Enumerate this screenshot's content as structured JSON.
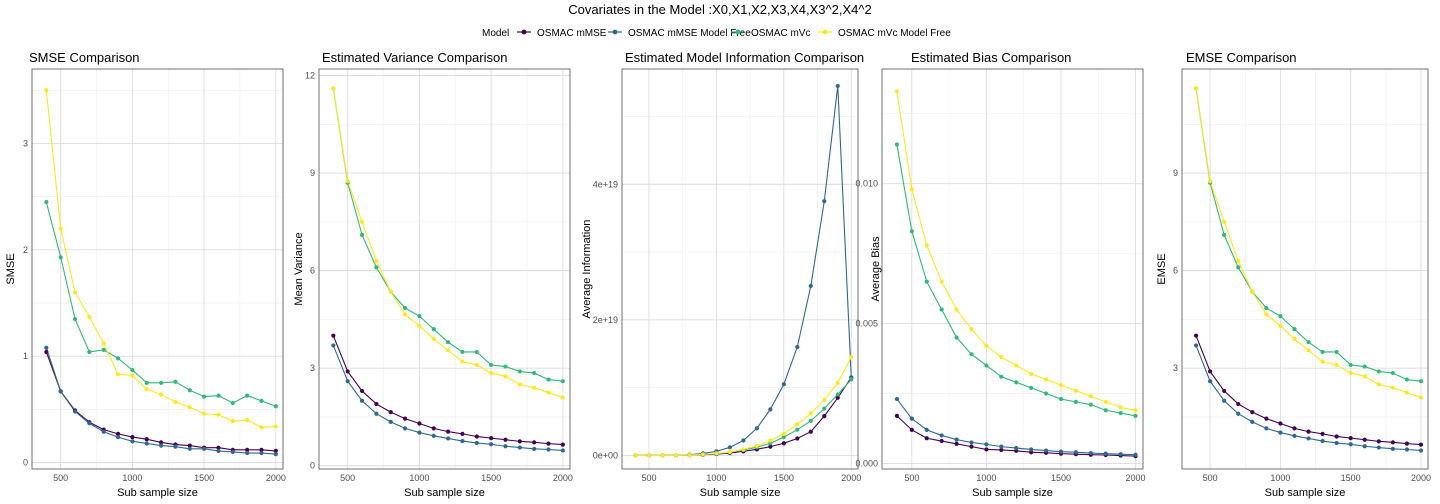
{
  "title": "Covariates in the Model :X0,X1,X2,X3,X4,X3^2,X4^2",
  "legend": {
    "title": "Model",
    "entries": [
      {
        "name": "OSMAC mMSE",
        "color": "#440154"
      },
      {
        "name": "OSMAC mMSE Model Free",
        "color": "#31688e"
      },
      {
        "name": "OSMAC mVc",
        "color": "#35b779"
      },
      {
        "name": "OSMAC mVc Model Free",
        "color": "#fde725"
      }
    ]
  },
  "chart_data": [
    {
      "type": "line",
      "title": "SMSE Comparison",
      "xlabel": "Sub sample size",
      "ylabel": "SMSE",
      "xlim": [
        300,
        2050
      ],
      "ylim": [
        -0.06,
        3.7
      ],
      "xticks": [
        500,
        1000,
        1500,
        2000
      ],
      "xtick_labels": [
        "500",
        "1000",
        "1500",
        "2000"
      ],
      "yticks": [
        0,
        1,
        2,
        3
      ],
      "ytick_labels": [
        "0",
        "1",
        "2",
        "3"
      ],
      "x": [
        400,
        500,
        600,
        700,
        800,
        900,
        1000,
        1100,
        1200,
        1300,
        1400,
        1500,
        1600,
        1700,
        1800,
        1900,
        2000
      ],
      "series": [
        {
          "name": "OSMAC mMSE",
          "values": [
            1.04,
            0.67,
            0.49,
            0.38,
            0.31,
            0.27,
            0.24,
            0.22,
            0.19,
            0.17,
            0.16,
            0.14,
            0.14,
            0.12,
            0.12,
            0.12,
            0.11
          ]
        },
        {
          "name": "OSMAC mMSE Model Free",
          "values": [
            1.08,
            0.67,
            0.48,
            0.37,
            0.29,
            0.24,
            0.2,
            0.18,
            0.16,
            0.15,
            0.13,
            0.13,
            0.11,
            0.1,
            0.09,
            0.09,
            0.08
          ]
        },
        {
          "name": "OSMAC mVc",
          "values": [
            2.45,
            1.93,
            1.35,
            1.04,
            1.06,
            0.98,
            0.87,
            0.75,
            0.75,
            0.76,
            0.68,
            0.62,
            0.63,
            0.56,
            0.63,
            0.58,
            0.53
          ]
        },
        {
          "name": "OSMAC mVc Model Free",
          "values": [
            3.5,
            2.2,
            1.6,
            1.37,
            1.12,
            0.83,
            0.82,
            0.69,
            0.64,
            0.57,
            0.52,
            0.46,
            0.45,
            0.39,
            0.4,
            0.33,
            0.34
          ]
        }
      ]
    },
    {
      "type": "line",
      "title": "Estimated Variance Comparison",
      "xlabel": "Sub sample size",
      "ylabel": "Mean Variance",
      "xlim": [
        300,
        2050
      ],
      "ylim": [
        -0.1,
        12.2
      ],
      "xticks": [
        500,
        1000,
        1500,
        2000
      ],
      "xtick_labels": [
        "500",
        "1000",
        "1500",
        "2000"
      ],
      "yticks": [
        0,
        3,
        6,
        9,
        12
      ],
      "ytick_labels": [
        "0",
        "3",
        "6",
        "9",
        "12"
      ],
      "x": [
        400,
        500,
        600,
        700,
        800,
        900,
        1000,
        1100,
        1200,
        1300,
        1400,
        1500,
        1600,
        1700,
        1800,
        1900,
        2000
      ],
      "series": [
        {
          "name": "OSMAC mMSE",
          "values": [
            4.0,
            2.9,
            2.3,
            1.9,
            1.65,
            1.45,
            1.3,
            1.15,
            1.05,
            0.98,
            0.9,
            0.85,
            0.8,
            0.75,
            0.72,
            0.68,
            0.65
          ]
        },
        {
          "name": "OSMAC mMSE Model Free",
          "values": [
            3.7,
            2.6,
            2.0,
            1.6,
            1.35,
            1.15,
            1.02,
            0.92,
            0.84,
            0.76,
            0.7,
            0.66,
            0.6,
            0.56,
            0.52,
            0.5,
            0.47
          ]
        },
        {
          "name": "OSMAC mVc",
          "values": [
            11.6,
            8.7,
            7.1,
            6.1,
            5.35,
            4.85,
            4.6,
            4.2,
            3.8,
            3.5,
            3.5,
            3.1,
            3.05,
            2.9,
            2.85,
            2.65,
            2.6
          ]
        },
        {
          "name": "OSMAC mVc Model Free",
          "values": [
            11.6,
            8.75,
            7.5,
            6.3,
            5.35,
            4.65,
            4.3,
            3.9,
            3.55,
            3.2,
            3.1,
            2.85,
            2.75,
            2.5,
            2.4,
            2.25,
            2.1
          ]
        }
      ]
    },
    {
      "type": "line",
      "title": "Estimated Model Information Comparison",
      "xlabel": "Sub sample size",
      "ylabel": "Average Information",
      "xlim": [
        300,
        2050
      ],
      "ylim": [
        -2e+18,
        5.7e+19
      ],
      "xticks": [
        500,
        1000,
        1500,
        2000
      ],
      "xtick_labels": [
        "500",
        "1000",
        "1500",
        "2000"
      ],
      "yticks": [
        0,
        2e+19,
        4e+19
      ],
      "ytick_labels": [
        "0e+00",
        "2e+19",
        "4e+19"
      ],
      "x": [
        400,
        500,
        600,
        700,
        800,
        900,
        1000,
        1100,
        1200,
        1300,
        1400,
        1500,
        1600,
        1700,
        1800,
        1900,
        2000
      ],
      "series": [
        {
          "name": "OSMAC mMSE",
          "values": [
            0,
            0,
            0,
            0,
            5e+16,
            1e+17,
            2e+17,
            3.5e+17,
            6e+17,
            9e+17,
            1.3e+18,
            1.8e+18,
            2.5e+18,
            3.5e+18,
            5.8e+18,
            8.5e+18,
            1.15e+19
          ]
        },
        {
          "name": "OSMAC mMSE Model Free",
          "values": [
            0,
            0,
            0,
            0,
            1e+17,
            3e+17,
            6e+17,
            1.2e+18,
            2.2e+18,
            4e+18,
            6.8e+18,
            1.05e+19,
            1.6e+19,
            2.5e+19,
            3.75e+19,
            5.45e+19,
            1.15e+19
          ]
        },
        {
          "name": "OSMAC mVc",
          "values": [
            0,
            0,
            0,
            0,
            5e+16,
            1.5e+17,
            2.5e+17,
            4.5e+17,
            8e+17,
            1.2e+18,
            1.8e+18,
            2.7e+18,
            3.8e+18,
            5.1e+18,
            6.9e+18,
            9e+18,
            1.12e+19
          ]
        },
        {
          "name": "OSMAC mVc Model Free",
          "values": [
            0,
            0,
            0,
            0,
            5e+16,
            1.5e+17,
            3e+17,
            5e+17,
            9e+17,
            1.4e+18,
            2.2e+18,
            3.2e+18,
            4.6e+18,
            6.2e+18,
            8.2e+18,
            1.07e+19,
            1.45e+19
          ]
        }
      ]
    },
    {
      "type": "line",
      "title": "Estimated Bias Comparison",
      "xlabel": "Sub sample size",
      "ylabel": "Average Bias",
      "xlim": [
        300,
        2050
      ],
      "ylim": [
        -0.0002,
        0.0141
      ],
      "xticks": [
        500,
        1000,
        1500,
        2000
      ],
      "xtick_labels": [
        "500",
        "1000",
        "1500",
        "2000"
      ],
      "yticks": [
        0,
        0.005,
        0.01
      ],
      "ytick_labels": [
        "0.000",
        "0.005",
        "0.010"
      ],
      "x": [
        400,
        500,
        600,
        700,
        800,
        900,
        1000,
        1100,
        1200,
        1300,
        1400,
        1500,
        1600,
        1700,
        1800,
        1900,
        2000
      ],
      "series": [
        {
          "name": "OSMAC mMSE",
          "values": [
            0.0017,
            0.0012,
            0.0009,
            0.0008,
            0.0007,
            0.0006,
            0.0005,
            0.00048,
            0.00045,
            0.0004,
            0.00038,
            0.00035,
            0.00033,
            0.00031,
            0.0003,
            0.00028,
            0.00026
          ]
        },
        {
          "name": "OSMAC mMSE Model Free",
          "values": [
            0.0023,
            0.0016,
            0.0012,
            0.001,
            0.00085,
            0.00075,
            0.00068,
            0.0006,
            0.00055,
            0.0005,
            0.00046,
            0.00042,
            0.0004,
            0.00037,
            0.00035,
            0.00033,
            0.00031
          ]
        },
        {
          "name": "OSMAC mVc",
          "values": [
            0.0114,
            0.0083,
            0.0065,
            0.0055,
            0.0045,
            0.0039,
            0.0035,
            0.0031,
            0.0029,
            0.0027,
            0.0025,
            0.0023,
            0.0022,
            0.0021,
            0.0019,
            0.0018,
            0.0017
          ]
        },
        {
          "name": "OSMAC mVc Model Free",
          "values": [
            0.0133,
            0.0098,
            0.0078,
            0.0065,
            0.0055,
            0.0048,
            0.0042,
            0.0038,
            0.0035,
            0.0032,
            0.003,
            0.0028,
            0.0026,
            0.0024,
            0.0022,
            0.002,
            0.0019
          ]
        }
      ]
    },
    {
      "type": "line",
      "title": "EMSE Comparison",
      "xlabel": "Sub sample size",
      "ylabel": "EMSE",
      "xlim": [
        300,
        2050
      ],
      "ylim": [
        -0.1,
        12.2
      ],
      "xticks": [
        500,
        1000,
        1500,
        2000
      ],
      "xtick_labels": [
        "500",
        "1000",
        "1500",
        "2000"
      ],
      "yticks": [
        3,
        6,
        9
      ],
      "ytick_labels": [
        "3",
        "6",
        "9"
      ],
      "x": [
        400,
        500,
        600,
        700,
        800,
        900,
        1000,
        1100,
        1200,
        1300,
        1400,
        1500,
        1600,
        1700,
        1800,
        1900,
        2000
      ],
      "series": [
        {
          "name": "OSMAC mMSE",
          "values": [
            4.0,
            2.9,
            2.3,
            1.9,
            1.65,
            1.45,
            1.3,
            1.15,
            1.05,
            0.98,
            0.9,
            0.85,
            0.8,
            0.75,
            0.72,
            0.68,
            0.65
          ]
        },
        {
          "name": "OSMAC mMSE Model Free",
          "values": [
            3.7,
            2.6,
            2.0,
            1.6,
            1.35,
            1.15,
            1.02,
            0.92,
            0.84,
            0.76,
            0.7,
            0.66,
            0.6,
            0.56,
            0.52,
            0.5,
            0.47
          ]
        },
        {
          "name": "OSMAC mVc",
          "values": [
            11.6,
            8.7,
            7.1,
            6.1,
            5.35,
            4.85,
            4.6,
            4.2,
            3.8,
            3.5,
            3.5,
            3.1,
            3.05,
            2.9,
            2.85,
            2.65,
            2.6
          ]
        },
        {
          "name": "OSMAC mVc Model Free",
          "values": [
            11.6,
            8.75,
            7.5,
            6.3,
            5.35,
            4.65,
            4.3,
            3.9,
            3.55,
            3.2,
            3.1,
            2.85,
            2.75,
            2.5,
            2.4,
            2.25,
            2.1
          ]
        }
      ]
    }
  ]
}
